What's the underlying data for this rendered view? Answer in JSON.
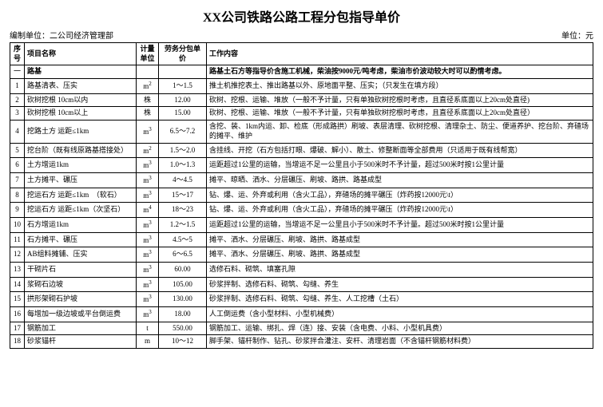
{
  "title": "XX公司铁路公路工程分包指导单价",
  "header": {
    "left_label": "编制单位：",
    "left_value": "二公司经济管理部",
    "right_label": "单位：",
    "right_value": "元"
  },
  "columns": {
    "seq": "序号",
    "name": "项目名称",
    "unit": "计量单位",
    "price": "劳务分包单价",
    "desc": "工作内容"
  },
  "section": {
    "seq": "一",
    "name": "路基",
    "desc": "路基土石方等指导价含施工机械，柴油按9000元/吨考虑，柴油市价波动较大时可以酌情考虑。"
  },
  "rows": [
    {
      "seq": "1",
      "name": "路基清表、压实",
      "unit": "m2",
      "price": "1～1.5",
      "desc": "推土机推挖表土、推出路基以外、原地面平整、压实；（只发生在填方段）"
    },
    {
      "seq": "2",
      "name": "砍树挖根 10cm以内",
      "unit": "株",
      "price": "12.00",
      "desc": "砍树、挖根、运输、堆放（一般不予计量，只有单独砍树挖根时考虑，且直径系底面以上20cm处直径)"
    },
    {
      "seq": "3",
      "name": "砍树挖根 10cm以上",
      "unit": "株",
      "price": "15.00",
      "desc": "砍树、挖根、运输、堆放（一般不予计量，只有单独砍树挖根时考虑，且直径系底面以上20cm处直径）"
    },
    {
      "seq": "4",
      "name": "挖路土方 运距≤1km",
      "unit": "m3",
      "price": "6.5～7.2",
      "desc": "含挖、装、1km内运、卸、检底（形成路拱）刷坡、表层清理、砍树挖根、清理杂土、防尘、便道养护、挖台阶、弃碴场的摊平、维护"
    },
    {
      "seq": "5",
      "name": "挖台阶（既有线原路基搭接处）",
      "unit": "m2",
      "price": "1.5～2.0",
      "desc": "含挂线、开挖（石方包括打眼、爆破、解小）、散土、修整断面等全部费用（只适用于既有线帮宽）"
    },
    {
      "seq": "6",
      "name": "土方增运1km",
      "unit": "m3",
      "price": "1.0～1.3",
      "desc": "运距超过1公里的运输，当增运不足一公里且小于500米时不予计量，超过500米时按1公里计量"
    },
    {
      "seq": "7",
      "name": "土方摊平、碾压",
      "unit": "m3",
      "price": "4～4.5",
      "desc": "摊平、晾晒、洒水、分层碾压、刷坡、路拱、路基成型"
    },
    {
      "seq": "8",
      "name": "挖运石方 运距≤1km　（软石）",
      "unit": "m3",
      "price": "15～17",
      "desc": "钻、爆、运、外弃或利用（含火工品），弃碴场的摊平碾压（炸药按12000元\\t）"
    },
    {
      "seq": "9",
      "name": "挖运石方 运距≤1km（次坚石）",
      "unit": "m4",
      "price": "18～23",
      "desc": "钻、爆、运、外弃或利用（含火工品），弃碴场的摊平碾压（炸药按12000元\\t）"
    },
    {
      "seq": "10",
      "name": "石方增运1km",
      "unit": "m3",
      "price": "1.2～1.5",
      "desc": "运距超过1公里的运输，当增运不足一公里且小于500米时不予计量。超过500米时按1公里计量"
    },
    {
      "seq": "11",
      "name": "石方摊平、碾压",
      "unit": "m3",
      "price": "4.5～5",
      "desc": "摊平、洒水、分层碾压、刷坡、路拱、路基成型"
    },
    {
      "seq": "12",
      "name": "AB组料摊铺、压实",
      "unit": "m3",
      "price": "6～6.5",
      "desc": "摊平、洒水、分层碾压、刷坡、路拱、路基成型"
    },
    {
      "seq": "13",
      "name": "干砌片石",
      "unit": "m3",
      "price": "60.00",
      "desc": "选修石料、砌筑、填塞孔隙"
    },
    {
      "seq": "14",
      "name": "浆砌石边坡",
      "unit": "m3",
      "price": "105.00",
      "desc": "砂浆拌制、选修石料、砌筑、勾缝、养生"
    },
    {
      "seq": "15",
      "name": "拱形架砌石护坡",
      "unit": "m3",
      "price": "130.00",
      "desc": "砂浆拌制、选修石料、砌筑、勾缝、养生、人工挖槽（土石）"
    },
    {
      "seq": "16",
      "name": "每增加一级边坡或平台倒运费",
      "unit": "m3",
      "price": "18.00",
      "desc": "人工倒运费（含小型材料、小型机械费）"
    },
    {
      "seq": "17",
      "name": "钢筋加工",
      "unit": "t",
      "price": "550.00",
      "desc": "钢筋加工、运输、绑扎、焊（连）接、安装（含电费、小料、小型机具费）"
    },
    {
      "seq": "18",
      "name": "砂浆锚杆",
      "unit": "m",
      "price": "10～12",
      "desc": "脚手架、锚杆制作、钻孔、砂浆拌合灌注、安杆、清理岩面（不含锚杆钢筋材料费）"
    }
  ],
  "styling": {
    "background_color": "#ffffff",
    "border_color": "#000000",
    "text_color": "#000000",
    "title_fontsize": 16,
    "body_fontsize": 9,
    "col_widths": {
      "seq": 18,
      "name": 140,
      "unit": 28,
      "price": 60
    }
  }
}
